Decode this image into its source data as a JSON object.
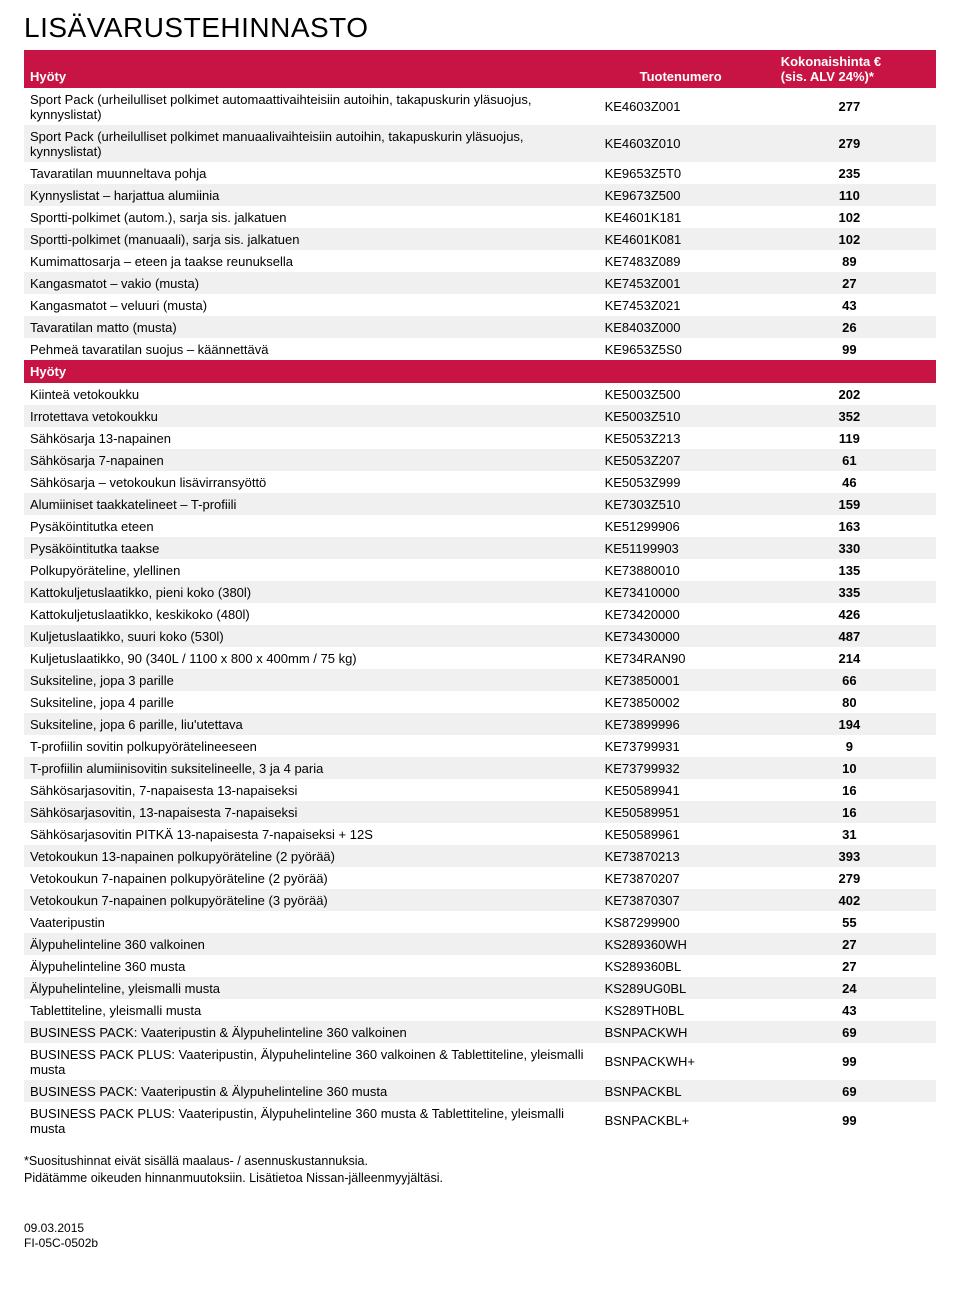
{
  "page_title": "LISÄVARUSTEHINNASTO",
  "header": {
    "col1": "Hyöty",
    "col2": "Tuotenumero",
    "col3_line1": "Kokonaishinta €",
    "col3_line2": "(sis. ALV 24%)*"
  },
  "section2_title": "Hyöty",
  "rows1": [
    {
      "desc": "Sport Pack (urheilulliset polkimet automaattivaihteisiin autoihin, takapuskurin yläsuojus, kynnyslistat)",
      "code": "KE4603Z001",
      "price": "277"
    },
    {
      "desc": "Sport Pack (urheilulliset polkimet manuaalivaihteisiin autoihin, takapuskurin yläsuojus, kynnyslistat)",
      "code": "KE4603Z010",
      "price": "279"
    },
    {
      "desc": "Tavaratilan muunneltava pohja",
      "code": "KE9653Z5T0",
      "price": "235"
    },
    {
      "desc": "Kynnyslistat – harjattua alumiinia",
      "code": "KE9673Z500",
      "price": "110"
    },
    {
      "desc": "Sportti-polkimet (autom.), sarja sis. jalkatuen",
      "code": "KE4601K181",
      "price": "102"
    },
    {
      "desc": "Sportti-polkimet (manuaali), sarja sis. jalkatuen",
      "code": "KE4601K081",
      "price": "102"
    },
    {
      "desc": "Kumimattosarja – eteen ja taakse reunuksella",
      "code": "KE7483Z089",
      "price": "89"
    },
    {
      "desc": "Kangasmatot – vakio (musta)",
      "code": "KE7453Z001",
      "price": "27"
    },
    {
      "desc": "Kangasmatot – veluuri (musta)",
      "code": "KE7453Z021",
      "price": "43"
    },
    {
      "desc": "Tavaratilan matto (musta)",
      "code": "KE8403Z000",
      "price": "26"
    },
    {
      "desc": "Pehmeä tavaratilan suojus – käännettävä",
      "code": "KE9653Z5S0",
      "price": "99"
    }
  ],
  "rows2": [
    {
      "desc": "Kiinteä vetokoukku",
      "code": "KE5003Z500",
      "price": "202"
    },
    {
      "desc": "Irrotettava vetokoukku",
      "code": "KE5003Z510",
      "price": "352"
    },
    {
      "desc": "Sähkösarja 13-napainen",
      "code": "KE5053Z213",
      "price": "119"
    },
    {
      "desc": "Sähkösarja 7-napainen",
      "code": "KE5053Z207",
      "price": "61"
    },
    {
      "desc": "Sähkösarja – vetokoukun lisävirransyöttö",
      "code": "KE5053Z999",
      "price": "46"
    },
    {
      "desc": "Alumiiniset taakkatelineet – T-profiili",
      "code": "KE7303Z510",
      "price": "159"
    },
    {
      "desc": "Pysäköintitutka eteen",
      "code": "KE51299906",
      "price": "163"
    },
    {
      "desc": "Pysäköintitutka taakse",
      "code": "KE51199903",
      "price": "330"
    },
    {
      "desc": "Polkupyöräteline, ylellinen",
      "code": "KE73880010",
      "price": "135"
    },
    {
      "desc": "Kattokuljetuslaatikko, pieni koko (380l)",
      "code": "KE73410000",
      "price": "335"
    },
    {
      "desc": "Kattokuljetuslaatikko, keskikoko (480l)",
      "code": "KE73420000",
      "price": "426"
    },
    {
      "desc": "Kuljetuslaatikko, suuri koko (530l)",
      "code": "KE73430000",
      "price": "487"
    },
    {
      "desc": "Kuljetuslaatikko, 90 (340L / 1100 x 800 x 400mm / 75 kg)",
      "code": "KE734RAN90",
      "price": "214"
    },
    {
      "desc": "Suksiteline, jopa 3 parille",
      "code": "KE73850001",
      "price": "66"
    },
    {
      "desc": "Suksiteline, jopa 4 parille",
      "code": "KE73850002",
      "price": "80"
    },
    {
      "desc": "Suksiteline, jopa 6 parille, liu'utettava",
      "code": "KE73899996",
      "price": "194"
    },
    {
      "desc": "T-profiilin sovitin polkupyörätelineeseen",
      "code": "KE73799931",
      "price": "9"
    },
    {
      "desc": "T-profiilin alumiinisovitin suksitelineelle, 3 ja 4 paria",
      "code": "KE73799932",
      "price": "10"
    },
    {
      "desc": "Sähkösarjasovitin, 7-napaisesta 13-napaiseksi",
      "code": "KE50589941",
      "price": "16"
    },
    {
      "desc": "Sähkösarjasovitin, 13-napaisesta 7-napaiseksi",
      "code": "KE50589951",
      "price": "16"
    },
    {
      "desc": "Sähkösarjasovitin PITKÄ 13-napaisesta 7-napaiseksi + 12S",
      "code": "KE50589961",
      "price": "31"
    },
    {
      "desc": "Vetokoukun 13-napainen polkupyöräteline (2 pyörää)",
      "code": "KE73870213",
      "price": "393"
    },
    {
      "desc": "Vetokoukun 7-napainen polkupyöräteline (2 pyörää)",
      "code": "KE73870207",
      "price": "279"
    },
    {
      "desc": "Vetokoukun 7-napainen polkupyöräteline (3 pyörää)",
      "code": "KE73870307",
      "price": "402"
    },
    {
      "desc": "Vaateripustin",
      "code": "KS87299900",
      "price": "55"
    },
    {
      "desc": "Älypuhelinteline 360 valkoinen",
      "code": "KS289360WH",
      "price": "27"
    },
    {
      "desc": "Älypuhelinteline 360 musta",
      "code": "KS289360BL",
      "price": "27"
    },
    {
      "desc": "Älypuhelinteline, yleismalli musta",
      "code": "KS289UG0BL",
      "price": "24"
    },
    {
      "desc": "Tablettiteline, yleismalli musta",
      "code": "KS289TH0BL",
      "price": "43"
    },
    {
      "desc": "BUSINESS PACK: Vaateripustin & Älypuhelinteline 360 valkoinen",
      "code": "BSNPACKWH",
      "price": "69"
    },
    {
      "desc": "BUSINESS PACK PLUS: Vaateripustin, Älypuhelinteline 360 valkoinen & Tablettiteline, yleismalli musta",
      "code": "BSNPACKWH+",
      "price": "99"
    },
    {
      "desc": "BUSINESS PACK: Vaateripustin & Älypuhelinteline 360 musta",
      "code": "BSNPACKBL",
      "price": "69"
    },
    {
      "desc": "BUSINESS PACK PLUS: Vaateripustin, Älypuhelinteline 360 musta & Tablettiteline, yleismalli musta",
      "code": "BSNPACKBL+",
      "price": "99"
    }
  ],
  "footnote_line1": "*Suositushinnat eivät sisällä maalaus- / asennuskustannuksia.",
  "footnote_line2": "Pidätämme oikeuden hinnanmuutoksiin. Lisätietoa Nissan-jälleenmyyjältäsi.",
  "footer_date": "09.03.2015",
  "footer_code": "FI-05C-0502b",
  "colors": {
    "header_bg": "#c71444",
    "header_fg": "#ffffff",
    "row_bg": "#f0f0f0",
    "row_alt_bg": "#ffffff",
    "text": "#000000"
  }
}
